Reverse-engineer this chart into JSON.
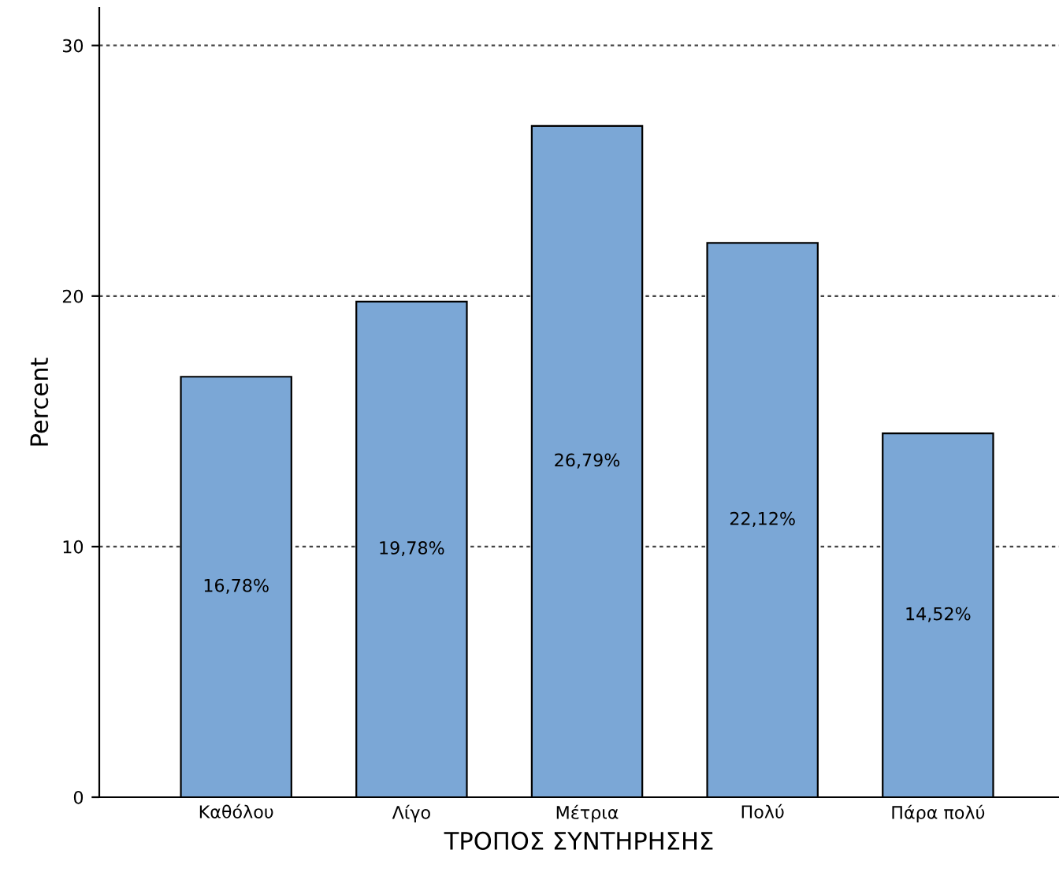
{
  "chart_data": {
    "type": "bar",
    "xlabel": "ΤΡΟΠΟΣ ΣΥΝΤΗΡΗΣΗΣ",
    "ylabel": "Percent",
    "categories": [
      "Καθόλου",
      "Λίγο",
      "Μέτρια",
      "Πολύ",
      "Πάρα πολύ"
    ],
    "values": [
      16.78,
      19.78,
      26.79,
      22.12,
      14.52
    ],
    "value_labels": [
      "16,78%",
      "19,78%",
      "26,79%",
      "22,12%",
      "14,52%"
    ],
    "color": "#7ba7d6",
    "ylim": [
      0,
      31.5
    ],
    "yticks": [
      0,
      10,
      20,
      30
    ],
    "grid": "y"
  }
}
